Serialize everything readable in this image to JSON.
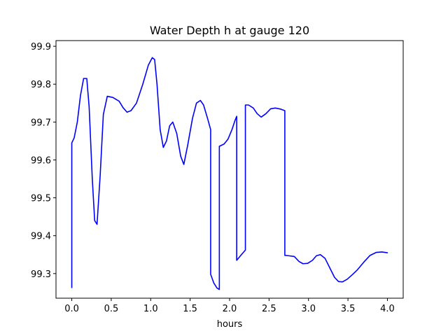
{
  "chart_data": {
    "type": "line",
    "title": "Water Depth h at gauge 120",
    "xlabel": "hours",
    "ylabel": "",
    "xlim": [
      -0.2,
      4.2
    ],
    "ylim": [
      99.235,
      99.915
    ],
    "xticks": [
      0.0,
      0.5,
      1.0,
      1.5,
      2.0,
      2.5,
      3.0,
      3.5,
      4.0
    ],
    "xtick_labels": [
      "0.0",
      "0.5",
      "1.0",
      "1.5",
      "2.0",
      "2.5",
      "3.0",
      "3.5",
      "4.0"
    ],
    "yticks": [
      99.3,
      99.4,
      99.5,
      99.6,
      99.7,
      99.8,
      99.9
    ],
    "ytick_labels": [
      "99.3",
      "99.4",
      "99.5",
      "99.6",
      "99.7",
      "99.8",
      "99.9"
    ],
    "grid": false,
    "series": [
      {
        "color": "#0000ff",
        "points": [
          [
            0.0,
            99.263
          ],
          [
            0.0,
            99.645
          ],
          [
            0.03,
            99.658
          ],
          [
            0.07,
            99.7
          ],
          [
            0.11,
            99.77
          ],
          [
            0.15,
            99.815
          ],
          [
            0.19,
            99.815
          ],
          [
            0.22,
            99.74
          ],
          [
            0.26,
            99.55
          ],
          [
            0.29,
            99.44
          ],
          [
            0.32,
            99.43
          ],
          [
            0.36,
            99.56
          ],
          [
            0.4,
            99.72
          ],
          [
            0.45,
            99.768
          ],
          [
            0.52,
            99.765
          ],
          [
            0.6,
            99.755
          ],
          [
            0.65,
            99.738
          ],
          [
            0.7,
            99.726
          ],
          [
            0.75,
            99.73
          ],
          [
            0.82,
            99.75
          ],
          [
            0.9,
            99.8
          ],
          [
            0.97,
            99.85
          ],
          [
            1.02,
            99.87
          ],
          [
            1.05,
            99.865
          ],
          [
            1.08,
            99.8
          ],
          [
            1.12,
            99.68
          ],
          [
            1.16,
            99.633
          ],
          [
            1.2,
            99.65
          ],
          [
            1.24,
            99.69
          ],
          [
            1.28,
            99.7
          ],
          [
            1.33,
            99.67
          ],
          [
            1.38,
            99.61
          ],
          [
            1.42,
            99.588
          ],
          [
            1.47,
            99.64
          ],
          [
            1.53,
            99.71
          ],
          [
            1.58,
            99.75
          ],
          [
            1.63,
            99.757
          ],
          [
            1.67,
            99.745
          ],
          [
            1.72,
            99.71
          ],
          [
            1.76,
            99.68
          ],
          [
            1.76,
            99.298
          ],
          [
            1.8,
            99.275
          ],
          [
            1.84,
            99.262
          ],
          [
            1.87,
            99.258
          ],
          [
            1.87,
            99.636
          ],
          [
            1.93,
            99.642
          ],
          [
            1.98,
            99.655
          ],
          [
            2.03,
            99.68
          ],
          [
            2.07,
            99.705
          ],
          [
            2.09,
            99.715
          ],
          [
            2.09,
            99.335
          ],
          [
            2.15,
            99.35
          ],
          [
            2.2,
            99.362
          ],
          [
            2.2,
            99.745
          ],
          [
            2.24,
            99.745
          ],
          [
            2.3,
            99.737
          ],
          [
            2.35,
            99.722
          ],
          [
            2.4,
            99.713
          ],
          [
            2.46,
            99.722
          ],
          [
            2.52,
            99.735
          ],
          [
            2.58,
            99.737
          ],
          [
            2.65,
            99.734
          ],
          [
            2.7,
            99.73
          ],
          [
            2.7,
            99.348
          ],
          [
            2.75,
            99.347
          ],
          [
            2.82,
            99.345
          ],
          [
            2.88,
            99.332
          ],
          [
            2.93,
            99.326
          ],
          [
            2.99,
            99.327
          ],
          [
            3.05,
            99.335
          ],
          [
            3.1,
            99.347
          ],
          [
            3.15,
            99.35
          ],
          [
            3.21,
            99.34
          ],
          [
            3.27,
            99.315
          ],
          [
            3.33,
            99.29
          ],
          [
            3.38,
            99.279
          ],
          [
            3.43,
            99.278
          ],
          [
            3.49,
            99.285
          ],
          [
            3.56,
            99.298
          ],
          [
            3.62,
            99.31
          ],
          [
            3.7,
            99.33
          ],
          [
            3.78,
            99.348
          ],
          [
            3.86,
            99.356
          ],
          [
            3.93,
            99.357
          ],
          [
            4.0,
            99.355
          ]
        ]
      }
    ]
  }
}
